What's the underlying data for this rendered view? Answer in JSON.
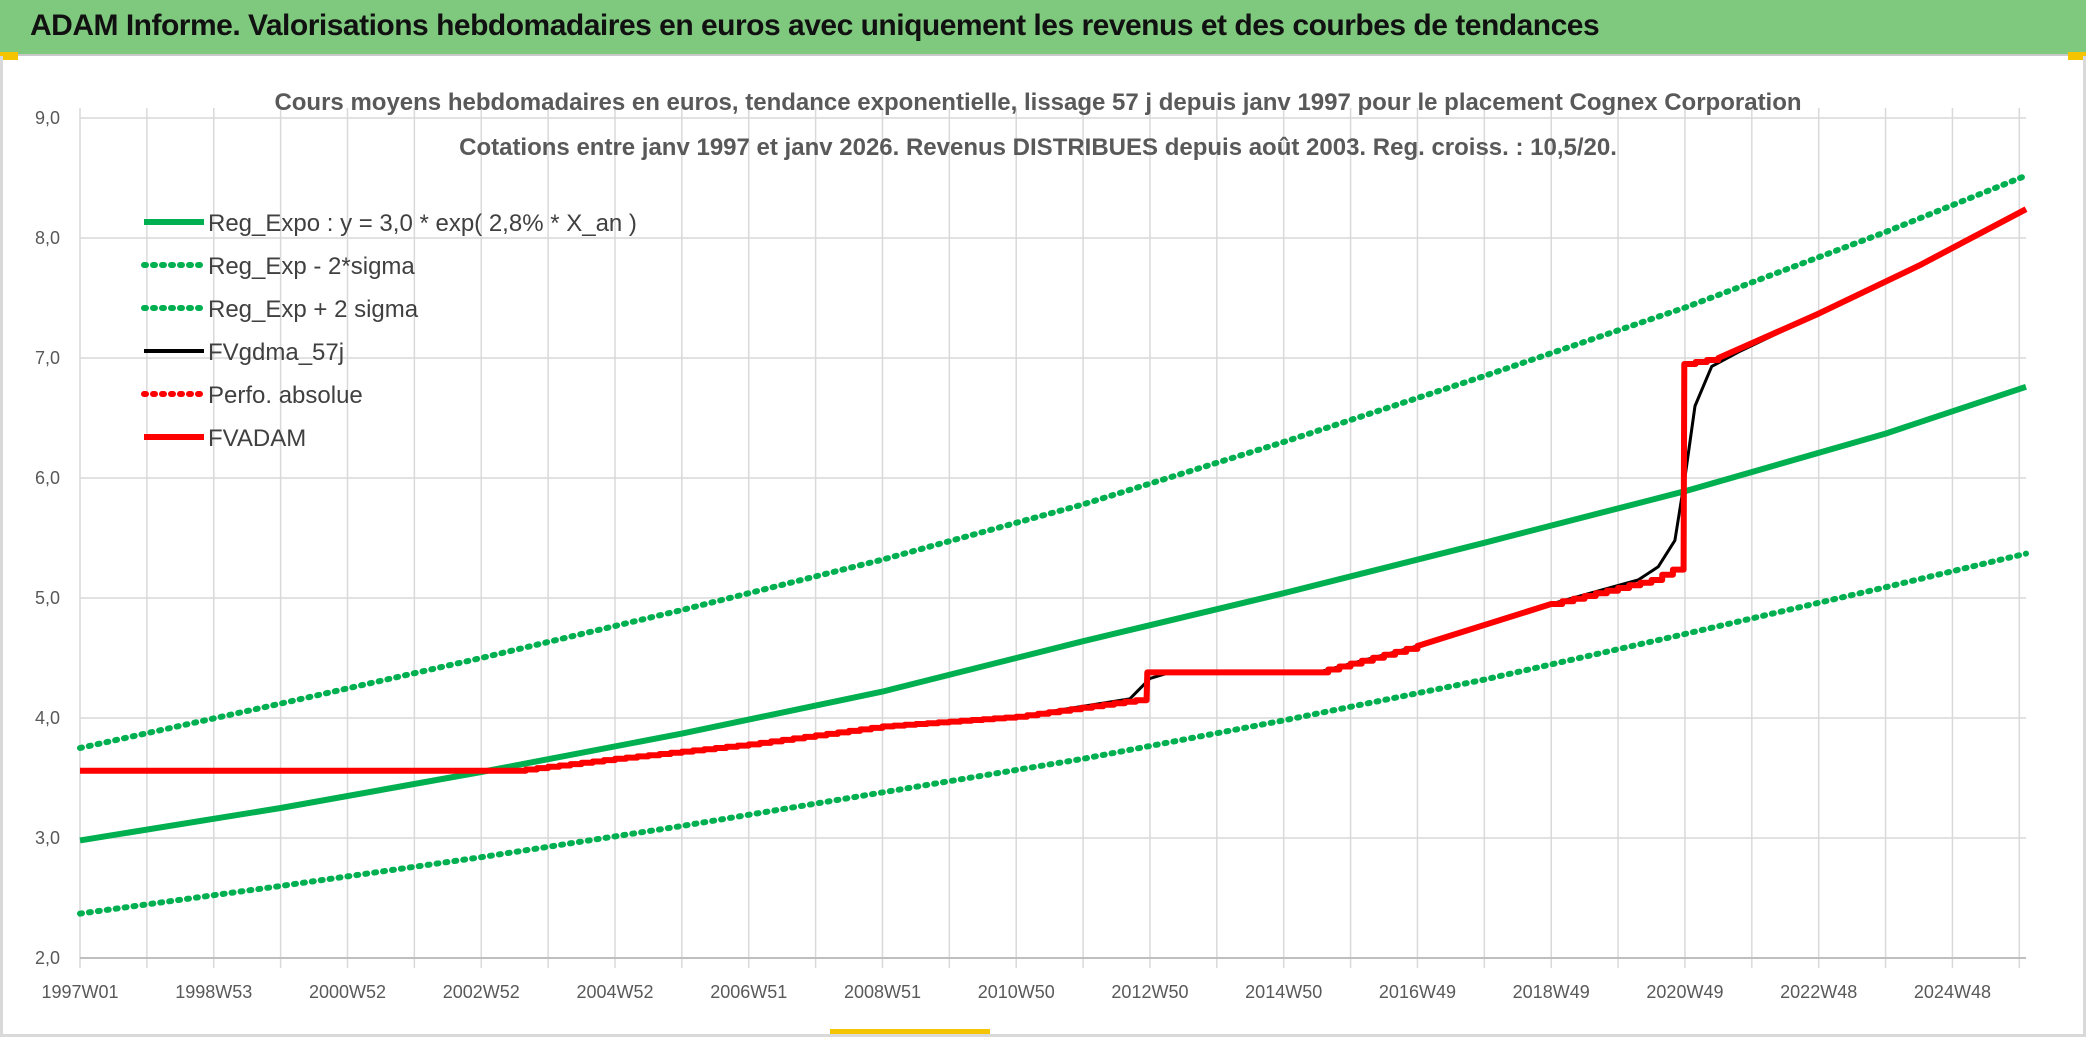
{
  "header": {
    "title": "ADAM Informe. Valorisations hebdomadaires en euros avec uniquement les revenus et des courbes de tendances"
  },
  "colors": {
    "banner": "#7fc97f",
    "green": "#00b050",
    "red": "#ff0000",
    "black": "#000000",
    "grid": "#d9d9d9"
  },
  "chart_data": {
    "type": "line",
    "title": "Cours moyens hebdomadaires en euros, tendance exponentielle, lissage 57 j depuis janv 1997 pour le placement Cognex Corporation",
    "subtitle": "Cotations entre janv 1997 et janv 2026. Revenus DISTRIBUES depuis août 2003. Reg. croiss. : 10,5/20.",
    "xlabel": "",
    "ylabel": "",
    "ylim": [
      2.0,
      9.0
    ],
    "yticks": [
      "2,0",
      "3,0",
      "4,0",
      "5,0",
      "6,0",
      "7,0",
      "8,0",
      "9,0"
    ],
    "xlim": [
      1997.0,
      2026.1
    ],
    "x_tick_labels": [
      "1997W01",
      "1998W53",
      "2000W52",
      "2002W52",
      "2004W52",
      "2006W51",
      "2008W51",
      "2010W50",
      "2012W50",
      "2014W50",
      "2016W49",
      "2018W49",
      "2020W49",
      "2022W48",
      "2024W48"
    ],
    "x_tick_positions": [
      1997.0,
      1999.0,
      2001.0,
      2003.0,
      2005.0,
      2007.0,
      2009.0,
      2011.0,
      2013.0,
      2015.0,
      2017.0,
      2019.0,
      2021.0,
      2023.0,
      2025.0
    ],
    "grid": true,
    "legend_position": "top-left",
    "series": [
      {
        "name": "Reg_Expo : y = 3,0 * exp( 2,8% *  X_an )",
        "style": "solid",
        "color": "#00b050",
        "x": [
          1997.0,
          2000.0,
          2003.0,
          2006.0,
          2009.0,
          2012.0,
          2015.0,
          2018.0,
          2021.0,
          2024.0,
          2026.1
        ],
        "y": [
          2.98,
          3.25,
          3.55,
          3.87,
          4.22,
          4.64,
          5.04,
          5.46,
          5.89,
          6.37,
          6.76
        ]
      },
      {
        "name": "Reg_Exp - 2*sigma",
        "style": "dotted",
        "color": "#00b050",
        "x": [
          1997.0,
          2000.0,
          2003.0,
          2006.0,
          2009.0,
          2012.0,
          2015.0,
          2018.0,
          2021.0,
          2024.0,
          2026.1
        ],
        "y": [
          2.37,
          2.6,
          2.84,
          3.1,
          3.38,
          3.66,
          3.98,
          4.32,
          4.7,
          5.09,
          5.37
        ]
      },
      {
        "name": "Reg_Exp + 2 sigma",
        "style": "dotted",
        "color": "#00b050",
        "x": [
          1997.0,
          2000.0,
          2003.0,
          2006.0,
          2009.0,
          2012.0,
          2015.0,
          2018.0,
          2021.0,
          2024.0,
          2026.1
        ],
        "y": [
          3.75,
          4.12,
          4.5,
          4.9,
          5.32,
          5.78,
          6.3,
          6.85,
          7.42,
          8.05,
          8.52
        ]
      },
      {
        "name": "FVgdma_57j",
        "style": "solid",
        "color": "#000000",
        "x": [
          1997.0,
          2003.5,
          2005.0,
          2007.0,
          2009.0,
          2011.0,
          2012.7,
          2013.0,
          2013.3,
          2015.5,
          2017.0,
          2019.0,
          2020.3,
          2020.6,
          2020.85,
          2021.0,
          2021.15,
          2021.4,
          2021.8,
          2023.0,
          2024.5,
          2026.1
        ],
        "y": [
          3.56,
          3.56,
          3.66,
          3.78,
          3.93,
          4.01,
          4.16,
          4.33,
          4.38,
          4.38,
          4.6,
          4.95,
          5.15,
          5.26,
          5.48,
          6.0,
          6.6,
          6.93,
          7.05,
          7.37,
          7.77,
          8.24
        ]
      },
      {
        "name": "Perfo. absolue",
        "style": "dotted",
        "color": "#ff0000",
        "x": [],
        "y": []
      },
      {
        "name": "FVADAM",
        "style": "solid",
        "color": "#ff0000",
        "x": [
          1997.0,
          2003.5,
          2005.0,
          2007.0,
          2009.0,
          2011.0,
          2012.95,
          2012.96,
          2015.5,
          2017.0,
          2019.0,
          2020.5,
          2020.98,
          2020.99,
          2021.5,
          2023.0,
          2024.5,
          2026.1
        ],
        "y": [
          3.56,
          3.56,
          3.66,
          3.78,
          3.93,
          4.01,
          4.16,
          4.38,
          4.38,
          4.6,
          4.95,
          5.15,
          5.28,
          6.95,
          7.0,
          7.37,
          7.77,
          8.24
        ]
      }
    ]
  }
}
